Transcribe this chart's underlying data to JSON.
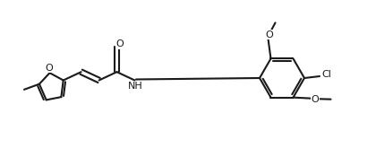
{
  "bg": "#ffffff",
  "lc": "#1a1a1a",
  "lw": 1.5,
  "fs": 8.0,
  "xlim": [
    0,
    42
  ],
  "ylim": [
    0,
    17.5
  ]
}
